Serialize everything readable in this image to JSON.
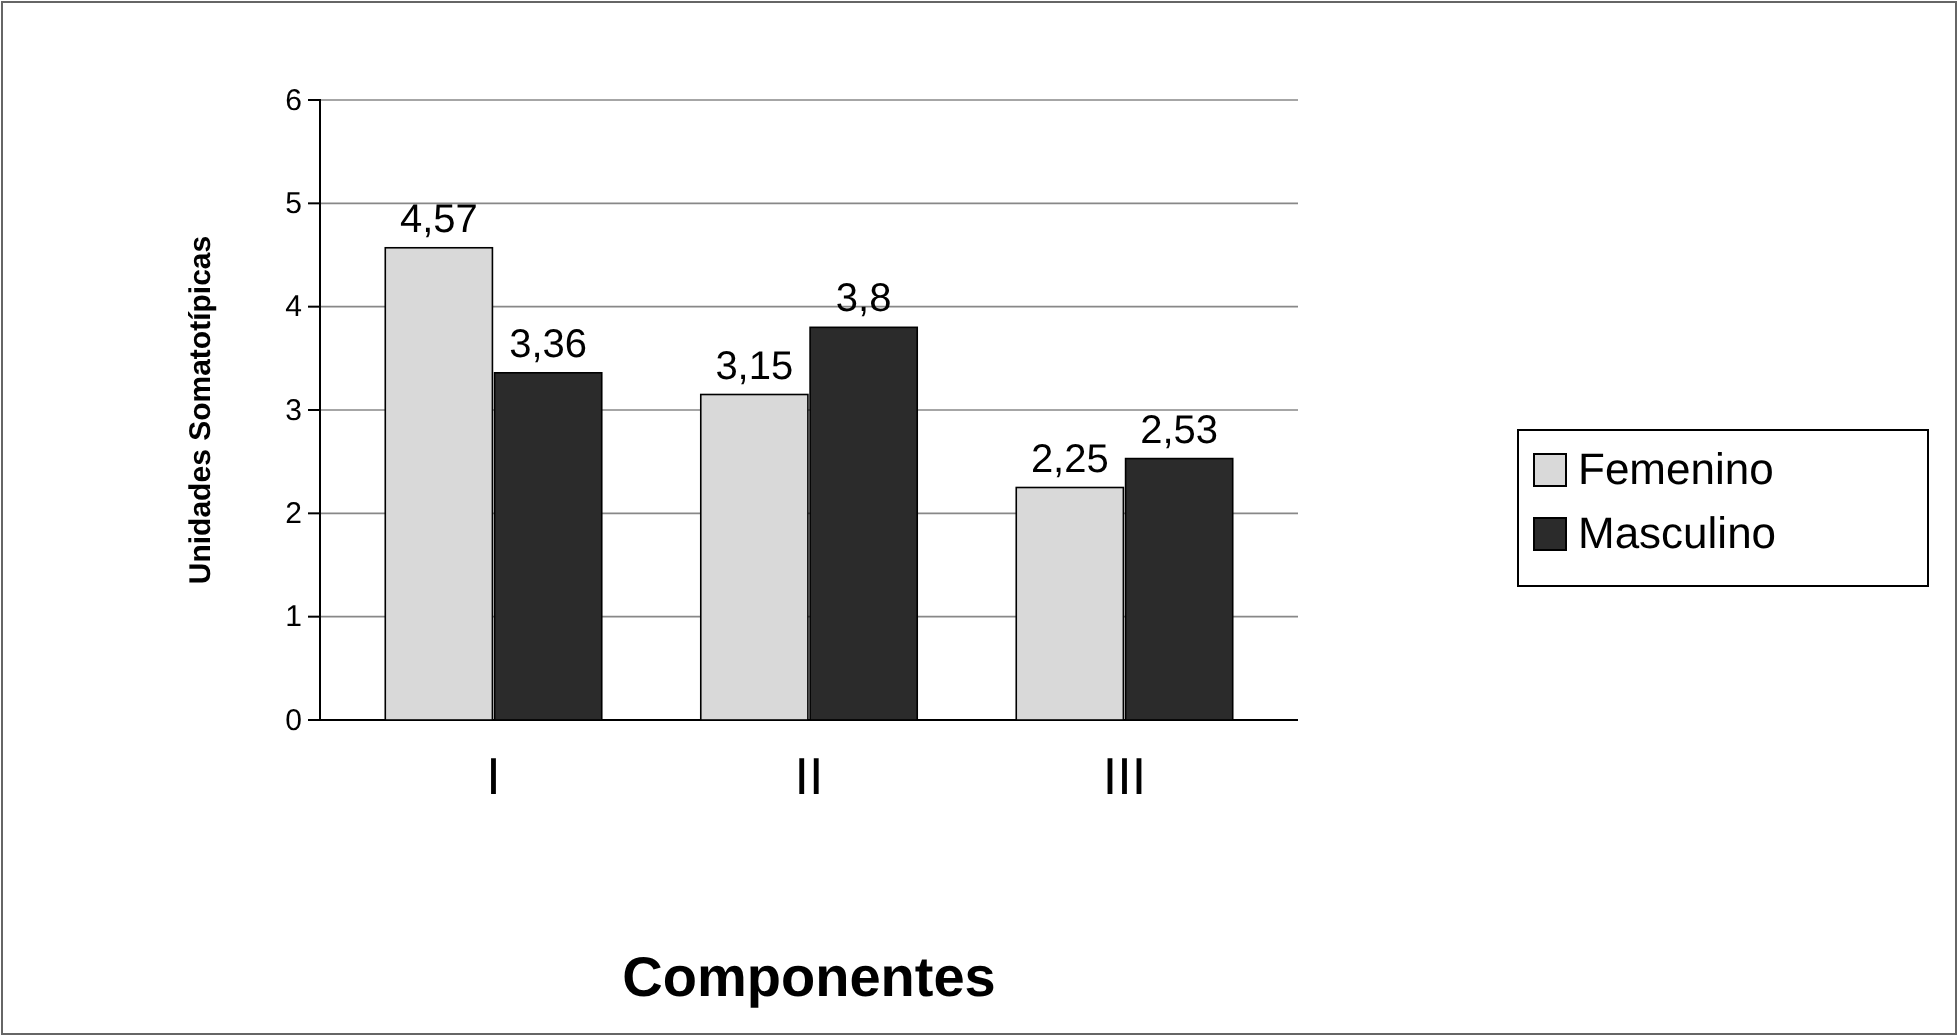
{
  "chart_data": {
    "type": "bar",
    "categories": [
      "I",
      "II",
      "III"
    ],
    "series": [
      {
        "name": "Femenino",
        "color": "#d9d9d9",
        "values": [
          4.57,
          3.15,
          2.25
        ],
        "value_labels": [
          "4,57",
          "3,15",
          "2,25"
        ]
      },
      {
        "name": "Masculino",
        "color": "#2b2b2b",
        "values": [
          3.36,
          3.8,
          2.53
        ],
        "value_labels": [
          "3,36",
          "3,8",
          "2,53"
        ]
      }
    ],
    "xlabel": "Componentes",
    "ylabel": "Unidades Somatotípicas",
    "ylim": [
      0,
      6
    ],
    "yticks": [
      0,
      1,
      2,
      3,
      4,
      5,
      6
    ],
    "grid": "y",
    "legend": "right"
  }
}
